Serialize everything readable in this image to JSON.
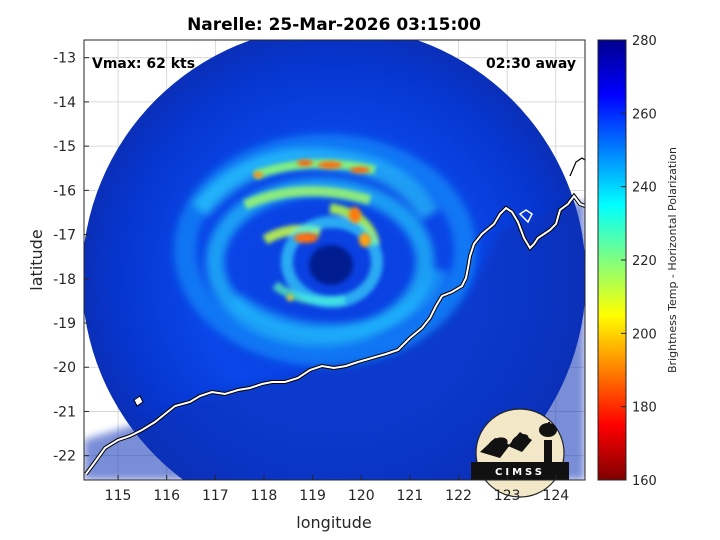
{
  "plot": {
    "title": "Narelle: 25-Mar-2026 03:15:00",
    "xlabel": "longitude",
    "ylabel": "latitude",
    "xlim": [
      114.3,
      124.6
    ],
    "ylim": [
      -22.55,
      -12.6
    ],
    "x_ticks": [
      "115",
      "116",
      "117",
      "118",
      "119",
      "120",
      "121",
      "122",
      "123",
      "124"
    ],
    "y_ticks": [
      "-13",
      "-14",
      "-15",
      "-16",
      "-17",
      "-18",
      "-19",
      "-20",
      "-21",
      "-22"
    ],
    "grid": true,
    "vmax_label": "Vmax: 62 kts",
    "time_label": "02:30 away"
  },
  "storm": {
    "eye_center": [
      119.1,
      -17.75
    ],
    "swath_center": [
      119.35,
      -17.75
    ]
  },
  "colorbar": {
    "label": "Brightness Temp - Horizontal Polarization",
    "range": [
      160,
      280
    ],
    "ticks": [
      "280",
      "260",
      "240",
      "220",
      "200",
      "180",
      "160"
    ],
    "colormap": [
      "#7f0000",
      "#ff0000",
      "#ff8000",
      "#ffff00",
      "#80ff80",
      "#00ffff",
      "#0080ff",
      "#0000ff",
      "#00008f"
    ]
  },
  "logo": {
    "text": "CIMSS",
    "icon": "cimss-satellite-dish-logo"
  }
}
